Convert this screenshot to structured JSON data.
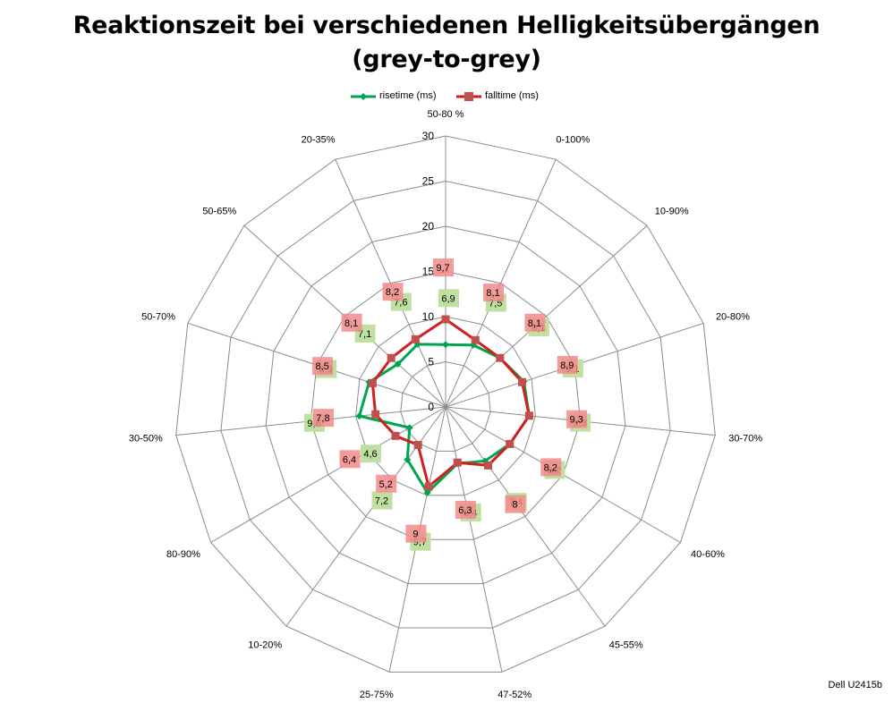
{
  "title_line1": "Reaktionszeit bei verschiedenen Helligkeitsübergängen",
  "title_line2": "(grey-to-grey)",
  "footer": "Dell U2415b",
  "chart_data": {
    "type": "radar",
    "categories": [
      "50-80 %",
      "0-100%",
      "10-90%",
      "20-80%",
      "30-70%",
      "40-60%",
      "45-55%",
      "47-52%",
      "25-75%",
      "10-20%",
      "80-90%",
      "30-50%",
      "50-70%",
      "50-65%",
      "20-35%"
    ],
    "ylim": [
      0,
      30
    ],
    "ticks": [
      "0",
      "5",
      "10",
      "15",
      "20",
      "25",
      "30"
    ],
    "grid": true,
    "legend_position": "top",
    "series": [
      {
        "name": "risetime (ms)",
        "color": "#00a550",
        "label_color": "#bfe0a0",
        "values": [
          6.9,
          7.5,
          8.1,
          9.1,
          9.3,
          8.2,
          7.4,
          6.4,
          9.7,
          7.2,
          4.6,
          9.6,
          8.9,
          7.1,
          7.6
        ],
        "labels": [
          "6,9",
          "7,5",
          "8,1",
          "9,1",
          "9,3",
          "8,2",
          "7,4",
          "6,4",
          "9,7",
          "7,2",
          "4,6",
          "9,6",
          "8,9",
          "7,1",
          "7,6"
        ]
      },
      {
        "name": "falltime (ms)",
        "color": "#d41e1e",
        "label_color": "#f28a8a",
        "values": [
          9.7,
          8.1,
          8.1,
          8.9,
          9.3,
          8.2,
          8.0,
          6.3,
          9.0,
          5.2,
          6.4,
          7.8,
          8.5,
          8.1,
          8.2
        ],
        "labels": [
          "9,7",
          "8,1",
          "8,1",
          "8,9",
          "9,3",
          "8,2",
          "8",
          "6,3",
          "9",
          "5,2",
          "6,4",
          "7,8",
          "8,5",
          "8,1",
          "8,2"
        ]
      }
    ]
  }
}
